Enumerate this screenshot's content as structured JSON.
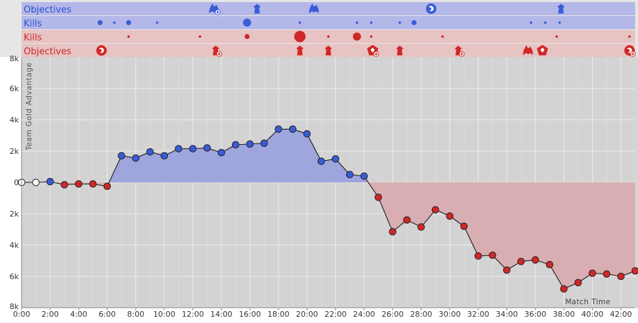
{
  "chart_data": {
    "type": "area",
    "ylabel": "Team Gold Advantage",
    "xlabel": "Match Time",
    "xlim": [
      0,
      43
    ],
    "ylim": [
      -8000,
      8000
    ],
    "x_ticks": [
      "0:00",
      "2:00",
      "4:00",
      "6:00",
      "8:00",
      "10:00",
      "12:00",
      "14:00",
      "16:00",
      "18:00",
      "20:00",
      "22:00",
      "24:00",
      "26:00",
      "28:00",
      "30:00",
      "32:00",
      "34:00",
      "36:00",
      "38:00",
      "40:00",
      "42:00"
    ],
    "y_ticks": [
      {
        "value": 8000,
        "label": "8k"
      },
      {
        "value": 6000,
        "label": "6k"
      },
      {
        "value": 4000,
        "label": "4k"
      },
      {
        "value": 2000,
        "label": "2k"
      },
      {
        "value": 0,
        "label": "0"
      },
      {
        "value": -2000,
        "label": "2k"
      },
      {
        "value": -4000,
        "label": "4k"
      },
      {
        "value": -6000,
        "label": "6k"
      },
      {
        "value": -8000,
        "label": "8k"
      }
    ],
    "grid": true,
    "colors": {
      "blue": "#3a5cd8",
      "red": "#d02828",
      "neutral": "#ffffff",
      "blue_area": "#9fa5dd",
      "red_area": "#d9aeb2",
      "plot_bg": "#d3d3d3",
      "blue_band": "#b4b8e8",
      "red_band": "#e8c3c3"
    },
    "series": [
      {
        "x": [
          0,
          1,
          2,
          3,
          4,
          5,
          6,
          7,
          8,
          9,
          10,
          11,
          12,
          13,
          14,
          15,
          16,
          17,
          18,
          19,
          20,
          21,
          22,
          23,
          24,
          25,
          26,
          27,
          28,
          29,
          30,
          31,
          32,
          33,
          34,
          35,
          36,
          37,
          38,
          39,
          40,
          41,
          42,
          43
        ],
        "values": [
          0,
          0,
          50,
          -150,
          -100,
          -100,
          -250,
          1700,
          1550,
          1950,
          1700,
          2150,
          2150,
          2200,
          1900,
          2400,
          2450,
          2500,
          3400,
          3400,
          3100,
          1350,
          1500,
          500,
          400,
          -950,
          -3150,
          -2400,
          -2850,
          -1750,
          -2150,
          -2800,
          -4700,
          -4650,
          -5600,
          -5050,
          -4950,
          -5250,
          -6800,
          -6400,
          -5800,
          -5850,
          -6000,
          -5650
        ]
      }
    ],
    "marker_sides": [
      "neutral",
      "neutral",
      "blue",
      "red",
      "red",
      "red",
      "red",
      "blue",
      "blue",
      "blue",
      "blue",
      "blue",
      "blue",
      "blue",
      "blue",
      "blue",
      "blue",
      "blue",
      "blue",
      "blue",
      "blue",
      "blue",
      "blue",
      "blue",
      "blue",
      "red",
      "red",
      "red",
      "red",
      "red",
      "red",
      "red",
      "red",
      "red",
      "red",
      "red",
      "red",
      "red",
      "red",
      "red",
      "red",
      "red",
      "red",
      "red"
    ],
    "event_rows": [
      {
        "label": "Objectives",
        "team": "blue",
        "events": [
          {
            "time": 13.5,
            "icon": "dragon-icon",
            "badge": true
          },
          {
            "time": 16.5,
            "icon": "tower-icon",
            "badge": false
          },
          {
            "time": 20.5,
            "icon": "dragon-icon",
            "badge": false
          },
          {
            "time": 28.7,
            "icon": "herald-icon",
            "badge": false
          },
          {
            "time": 37.8,
            "icon": "tower-icon",
            "badge": false
          }
        ]
      },
      {
        "label": "Kills",
        "team": "blue",
        "events": [
          {
            "time": 5.5,
            "size": 2
          },
          {
            "time": 6.5,
            "size": 1
          },
          {
            "time": 7.5,
            "size": 2
          },
          {
            "time": 9.5,
            "size": 1
          },
          {
            "time": 15.8,
            "size": 3
          },
          {
            "time": 19.5,
            "size": 1
          },
          {
            "time": 23.5,
            "size": 1
          },
          {
            "time": 24.5,
            "size": 1
          },
          {
            "time": 26.5,
            "size": 1
          },
          {
            "time": 27.5,
            "size": 2
          },
          {
            "time": 35.7,
            "size": 1
          },
          {
            "time": 36.7,
            "size": 1
          },
          {
            "time": 37.7,
            "size": 1
          }
        ]
      },
      {
        "label": "Kills",
        "team": "red",
        "events": [
          {
            "time": 7.5,
            "size": 1
          },
          {
            "time": 12.5,
            "size": 1
          },
          {
            "time": 15.8,
            "size": 2
          },
          {
            "time": 19.5,
            "size": 4
          },
          {
            "time": 21.5,
            "size": 1
          },
          {
            "time": 23.5,
            "size": 3
          },
          {
            "time": 24.5,
            "size": 1
          },
          {
            "time": 29.5,
            "size": 1
          },
          {
            "time": 37.5,
            "size": 1
          },
          {
            "time": 42.6,
            "size": 1
          }
        ]
      },
      {
        "label": "Objectives",
        "team": "red",
        "events": [
          {
            "time": 5.6,
            "icon": "herald-icon",
            "badge": false
          },
          {
            "time": 13.6,
            "icon": "tower-icon",
            "badge": true
          },
          {
            "time": 19.5,
            "icon": "tower-icon",
            "badge": false
          },
          {
            "time": 21.5,
            "icon": "tower-icon",
            "badge": false
          },
          {
            "time": 24.6,
            "icon": "inhibitor-icon",
            "badge": true
          },
          {
            "time": 26.5,
            "icon": "tower-icon",
            "badge": false
          },
          {
            "time": 30.6,
            "icon": "tower-icon",
            "badge": true
          },
          {
            "time": 35.5,
            "icon": "dragon-icon",
            "badge": false
          },
          {
            "time": 36.5,
            "icon": "inhibitor-icon",
            "badge": false
          },
          {
            "time": 42.6,
            "icon": "herald-icon",
            "badge": true
          }
        ]
      }
    ]
  }
}
